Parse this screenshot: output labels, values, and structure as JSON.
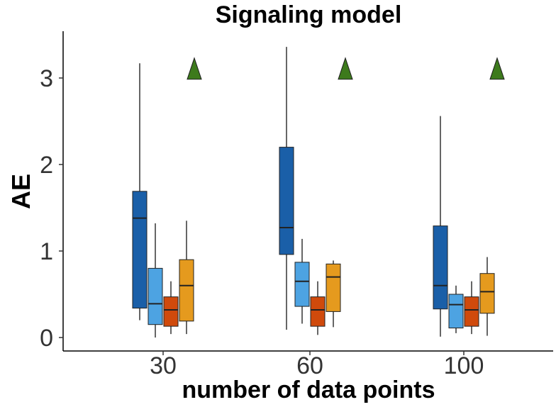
{
  "chart_data": {
    "type": "boxplot",
    "title": "Signaling model",
    "xlabel": "number of data points",
    "ylabel": "AE",
    "ylim": [
      -0.15,
      3.5
    ],
    "yticks": [
      0,
      1,
      2,
      3
    ],
    "categories": [
      "30",
      "60",
      "100"
    ],
    "grid": false,
    "legend": "none",
    "series": [
      {
        "color": "#1a5fa8",
        "boxes": [
          {
            "min": 0.2,
            "q1": 0.34,
            "median": 1.38,
            "q3": 1.69,
            "max": 3.17
          },
          {
            "min": 0.09,
            "q1": 0.96,
            "median": 1.27,
            "q3": 2.2,
            "max": 3.36
          },
          {
            "min": 0.01,
            "q1": 0.33,
            "median": 0.6,
            "q3": 1.29,
            "max": 2.56
          }
        ]
      },
      {
        "color": "#4da3e2",
        "boxes": [
          {
            "min": 0.0,
            "q1": 0.15,
            "median": 0.39,
            "q3": 0.8,
            "max": 1.32
          },
          {
            "min": 0.16,
            "q1": 0.36,
            "median": 0.65,
            "q3": 0.87,
            "max": 1.14
          },
          {
            "min": 0.05,
            "q1": 0.11,
            "median": 0.38,
            "q3": 0.5,
            "max": 0.6
          }
        ]
      },
      {
        "color": "#d04a0c",
        "boxes": [
          {
            "min": 0.04,
            "q1": 0.13,
            "median": 0.32,
            "q3": 0.47,
            "max": 0.65
          },
          {
            "min": 0.03,
            "q1": 0.13,
            "median": 0.32,
            "q3": 0.47,
            "max": 0.65
          },
          {
            "min": 0.04,
            "q1": 0.13,
            "median": 0.32,
            "q3": 0.47,
            "max": 0.65
          }
        ]
      },
      {
        "color": "#e59a1e",
        "boxes": [
          {
            "min": 0.04,
            "q1": 0.19,
            "median": 0.6,
            "q3": 0.9,
            "max": 1.35
          },
          {
            "min": 0.12,
            "q1": 0.3,
            "median": 0.7,
            "q3": 0.85,
            "max": 0.89
          },
          {
            "min": 0.02,
            "q1": 0.28,
            "median": 0.53,
            "q3": 0.74,
            "max": 0.93
          }
        ]
      }
    ],
    "markers": {
      "shape": "triangle",
      "color": "#3d7a1c",
      "points": [
        {
          "category": "30",
          "y": 3.1
        },
        {
          "category": "60",
          "y": 3.1
        },
        {
          "category": "100",
          "y": 3.1
        }
      ]
    }
  }
}
